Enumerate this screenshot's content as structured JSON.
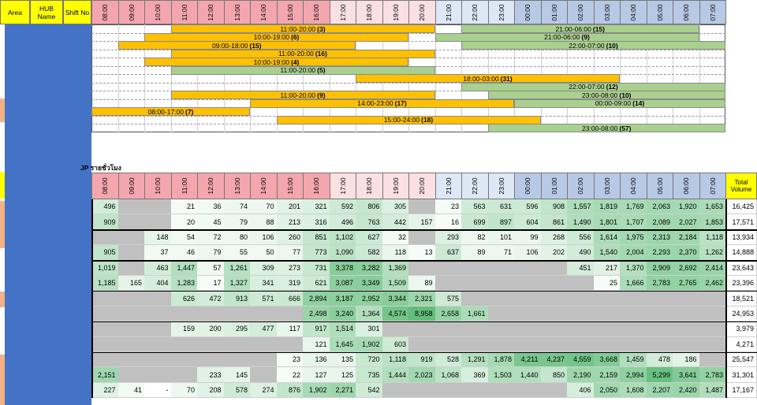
{
  "header": {
    "area": "Area",
    "hub_name": "HUB\nName",
    "shift_no": "Shift No"
  },
  "hours": [
    "08:00",
    "09:00",
    "10:00",
    "11:00",
    "12:00",
    "13:00",
    "14:00",
    "15:00",
    "16:00",
    "17:00",
    "18:00",
    "19:00",
    "20:00",
    "21:00",
    "22:00",
    "23:00",
    "00:00",
    "01:00",
    "02:00",
    "03:00",
    "04:00",
    "05:00",
    "06:00",
    "07:00"
  ],
  "shift_rows": [
    [
      {
        "start": 3,
        "end": 13,
        "label": "11:00-20:00",
        "code": "(3)",
        "kind": "day"
      },
      {
        "start": 14,
        "end": 23,
        "label": "21:00-06:00",
        "code": "(15)",
        "kind": "night"
      }
    ],
    [
      {
        "start": 2,
        "end": 12,
        "label": "10:00-19:00",
        "code": "(6)",
        "kind": "day"
      },
      {
        "start": 13,
        "end": 23,
        "label": "21:00-06:00",
        "code": "(9)",
        "kind": "night"
      }
    ],
    [
      {
        "start": 1,
        "end": 10,
        "label": "09:00-18:00",
        "code": "(15)",
        "kind": "day"
      },
      {
        "start": 14,
        "end": 24,
        "label": "22:00-07:00",
        "code": "(10)",
        "kind": "night"
      }
    ],
    [
      {
        "start": 3,
        "end": 13,
        "label": "11:00-20:00",
        "code": "(16)",
        "kind": "day"
      }
    ],
    [
      {
        "start": 2,
        "end": 12,
        "label": "10:00-19:00",
        "code": "(4)",
        "kind": "day"
      }
    ],
    [
      {
        "start": 3,
        "end": 13,
        "label": "11:00-20:00",
        "code": "(5)",
        "kind": "green"
      }
    ],
    [
      {
        "start": 10,
        "end": 20,
        "label": "18:00-03:00",
        "code": "(31)",
        "kind": "day"
      }
    ],
    [
      {
        "start": 14,
        "end": 24,
        "label": "22:00-07:00",
        "code": "(12)",
        "kind": "night"
      }
    ],
    [
      {
        "start": 3,
        "end": 13,
        "label": "11:00-20:00",
        "code": "(9)",
        "kind": "day"
      },
      {
        "start": 15,
        "end": 24,
        "label": "23:00-08:00",
        "code": "(10)",
        "kind": "night"
      }
    ],
    [
      {
        "start": 6,
        "end": 16,
        "label": "14:00-23:00",
        "code": "(17)",
        "kind": "day"
      },
      {
        "start": 16,
        "end": 24,
        "label": "00:00-09:00",
        "code": "(14)",
        "kind": "night"
      }
    ],
    [
      {
        "start": 0,
        "end": 6,
        "label": "08:00-17:00",
        "code": "(7)",
        "kind": "day"
      }
    ],
    [
      {
        "start": 7,
        "end": 17,
        "label": "15:00-24:00",
        "code": "(18)",
        "kind": "day"
      }
    ],
    [
      {
        "start": 15,
        "end": 24,
        "label": "23:00-08:00",
        "code": "(57)",
        "kind": "night"
      }
    ]
  ],
  "section_title": "JP รายชั่วโมง",
  "total_header": "Total Volume",
  "volume_rows": [
    [
      "496",
      "",
      "",
      "21",
      "36",
      "74",
      "70",
      "201",
      "321",
      "592",
      "806",
      "305",
      "",
      "23",
      "563",
      "631",
      "596",
      "908",
      "1,557",
      "1,819",
      "1,769",
      "2,063",
      "1,920",
      "1,653",
      "16,425"
    ],
    [
      "909",
      "",
      "",
      "20",
      "45",
      "79",
      "88",
      "213",
      "316",
      "496",
      "763",
      "442",
      "157",
      "16",
      "699",
      "897",
      "604",
      "861",
      "1,490",
      "1,801",
      "1,707",
      "2,089",
      "2,027",
      "1,853",
      "17,571"
    ],
    [
      "",
      "",
      "148",
      "54",
      "72",
      "80",
      "106",
      "260",
      "851",
      "1,102",
      "627",
      "32",
      "",
      "293",
      "82",
      "101",
      "99",
      "268",
      "556",
      "1,614",
      "1,975",
      "2,313",
      "2,184",
      "1,118",
      "13,934"
    ],
    [
      "905",
      "",
      "37",
      "46",
      "79",
      "55",
      "50",
      "77",
      "773",
      "1,090",
      "582",
      "118",
      "13",
      "637",
      "89",
      "71",
      "106",
      "202",
      "490",
      "1,540",
      "2,004",
      "2,293",
      "2,370",
      "1,262",
      "14,888"
    ],
    [
      "1,019",
      "",
      "463",
      "1,447",
      "57",
      "1,261",
      "309",
      "273",
      "731",
      "3,378",
      "3,282",
      "1,369",
      "",
      "",
      "",
      "",
      "",
      "",
      "451",
      "217",
      "1,370",
      "2,909",
      "2,692",
      "2,414",
      "23,643"
    ],
    [
      "1,185",
      "165",
      "404",
      "1,283",
      "17",
      "1,327",
      "341",
      "319",
      "621",
      "3,087",
      "3,349",
      "1,509",
      "89",
      "",
      "",
      "",
      "",
      "",
      "",
      "25",
      "1,666",
      "2,783",
      "2,765",
      "2,462",
      "23,396"
    ],
    [
      "",
      "",
      "",
      "626",
      "472",
      "913",
      "571",
      "666",
      "2,894",
      "3,187",
      "2,952",
      "3,344",
      "2,321",
      "575",
      "",
      "",
      "",
      "",
      "",
      "",
      "",
      "",
      "",
      "",
      "18,521"
    ],
    [
      "",
      "",
      "",
      "",
      "",
      "",
      "",
      "",
      "2,498",
      "3,240",
      "1,364",
      "4,574",
      "8,958",
      "2,658",
      "1,661",
      "",
      "",
      "",
      "",
      "",
      "",
      "",
      "",
      "",
      "24,953"
    ],
    [
      "",
      "",
      "",
      "159",
      "200",
      "295",
      "477",
      "117",
      "917",
      "1,514",
      "301",
      "",
      "",
      "",
      "",
      "",
      "",
      "",
      "",
      "",
      "",
      "",
      "",
      "",
      "3,979"
    ],
    [
      "",
      "",
      "",
      "",
      "",
      "",
      "",
      "",
      "121",
      "1,645",
      "1,902",
      "603",
      "",
      "",
      "",
      "",
      "",
      "",
      "",
      "",
      "",
      "",
      "",
      "",
      "4,271"
    ],
    [
      "",
      "",
      "",
      "",
      "",
      "",
      "",
      "23",
      "136",
      "135",
      "720",
      "1,118",
      "919",
      "528",
      "1,291",
      "1,878",
      "4,211",
      "4,237",
      "4,559",
      "3,668",
      "1,459",
      "478",
      "186",
      "",
      "25,547"
    ],
    [
      "2,151",
      "",
      "",
      "",
      "233",
      "145",
      "",
      "22",
      "127",
      "125",
      "735",
      "1,444",
      "2,023",
      "1,068",
      "369",
      "1,503",
      "1,440",
      "850",
      "2,190",
      "2,159",
      "2,994",
      "5,299",
      "3,641",
      "2,783",
      "31,301"
    ],
    [
      "227",
      "41",
      "-",
      "70",
      "208",
      "578",
      "274",
      "876",
      "1,902",
      "2,271",
      "542",
      "",
      "",
      "",
      "",
      "",
      "",
      "",
      "406",
      "2,050",
      "1,608",
      "2,207",
      "2,420",
      "1,487",
      "17,167"
    ]
  ],
  "colors": {
    "morning_header": "#f4a6ae",
    "day_header": "#fbe0e3",
    "night_header": "#b8c9e6",
    "day_bar": "#ffc000",
    "night_bar": "#a9d08e",
    "left_blue": "#4472c4",
    "header_yellow": "#ffff00"
  }
}
